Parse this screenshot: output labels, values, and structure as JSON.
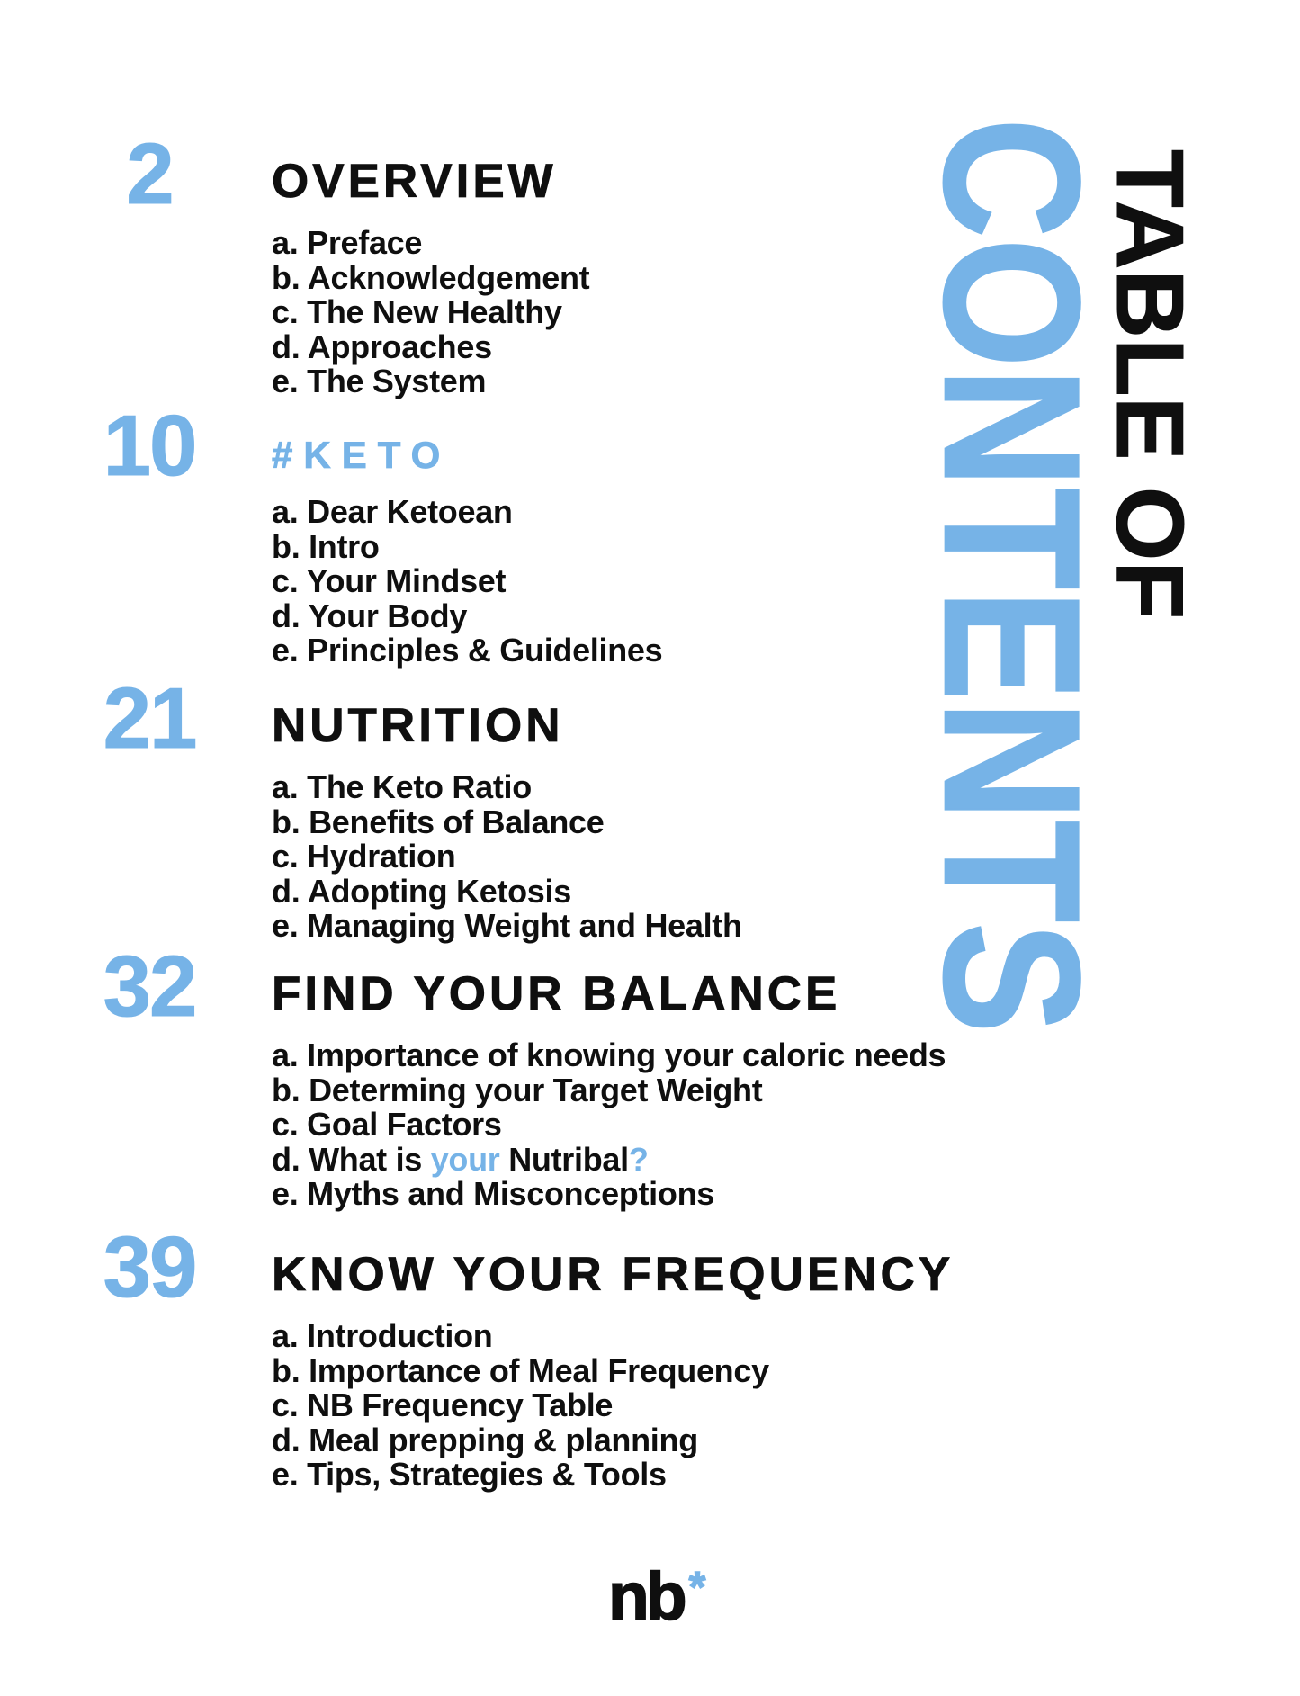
{
  "colors": {
    "accent_blue": "#76B3E7",
    "text_black": "#0F0F0F"
  },
  "banner": {
    "table_of": "TABLE OF",
    "contents": "CONTENTS"
  },
  "sections": [
    {
      "page_number": "2",
      "title": "OVERVIEW",
      "title_accent": false,
      "items": [
        "a. Preface",
        "b. Acknowledgement",
        "c. The New Healthy",
        "d. Approaches",
        "e. The System"
      ]
    },
    {
      "page_number": "10",
      "title": "#KETO",
      "title_accent": true,
      "items": [
        "a. Dear Ketoean",
        "b. Intro",
        "c. Your Mindset",
        "d. Your Body",
        "e. Principles & Guidelines"
      ]
    },
    {
      "page_number": "21",
      "title": "NUTRITION",
      "title_accent": false,
      "items": [
        "a. The Keto Ratio",
        "b. Benefits of Balance",
        "c. Hydration",
        "d. Adopting Ketosis",
        "e. Managing Weight and Health"
      ]
    },
    {
      "page_number": "32",
      "title": "FIND YOUR BALANCE",
      "title_accent": false,
      "items": [
        "a. Importance of knowing your caloric needs",
        "b. Determing your Target Weight",
        "c. Goal Factors",
        {
          "segments": [
            {
              "text": "d. What is ",
              "accent": false
            },
            {
              "text": "your",
              "accent": true
            },
            {
              "text": " Nutribal",
              "accent": false
            },
            {
              "text": "?",
              "accent": true
            }
          ]
        },
        "e. Myths and Misconceptions"
      ]
    },
    {
      "page_number": "39",
      "title": "KNOW YOUR FREQUENCY",
      "title_accent": false,
      "items": [
        "a. Introduction",
        "b. Importance of Meal Frequency",
        "c. NB Frequency Table",
        "d. Meal prepping & planning",
        "e. Tips, Strategies & Tools"
      ]
    }
  ],
  "logo": {
    "text": "nb",
    "mark": "*"
  }
}
